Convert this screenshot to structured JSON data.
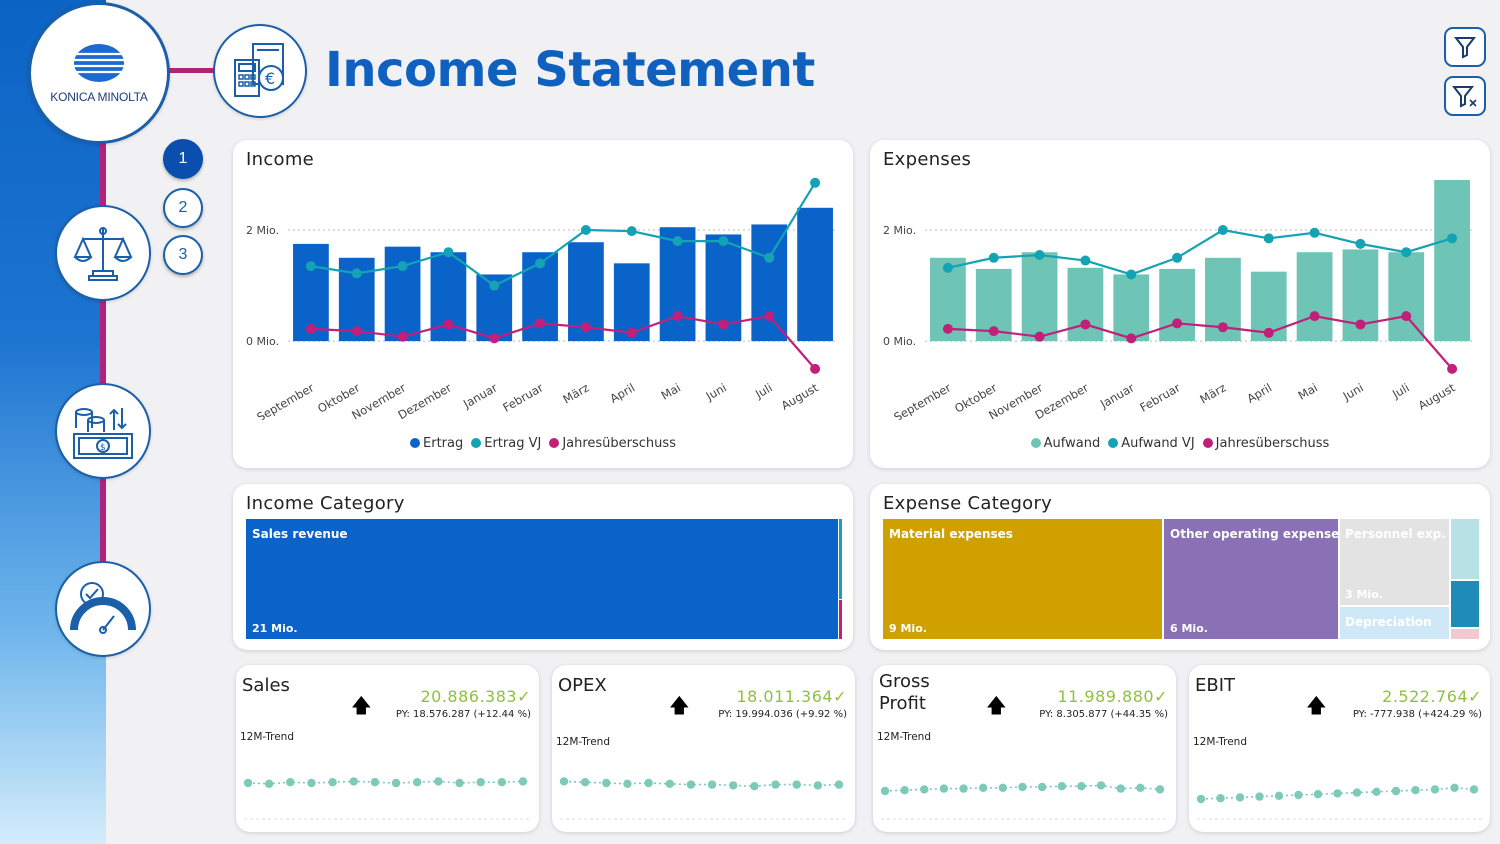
{
  "brand": {
    "name": "KONICA MINOLTA"
  },
  "page_title": "Income Statement",
  "nav": {
    "pages": [
      "1",
      "2",
      "3"
    ],
    "active_page": "1",
    "icons": [
      "balance-scale-icon",
      "finance-cash-icon",
      "performance-gauge-icon"
    ]
  },
  "toolbar": {
    "filter_icon": "filter-icon",
    "clear_filter_icon": "clear-filter-icon"
  },
  "colors": {
    "ertrag": "#0a63c9",
    "ertrag_vj": "#13a3b4",
    "jahresueberschuss": "#c0207a",
    "aufwand": "#6ec5b5",
    "aufwand_vj": "#13a3b4",
    "title": "#1060c0",
    "kpi_value": "#8fc13e"
  },
  "income_card": {
    "title": "Income",
    "y_ticks": [
      "2 Mio.",
      "0 Mio."
    ]
  },
  "expenses_card": {
    "title": "Expenses",
    "y_ticks": [
      "2 Mio.",
      "0 Mio."
    ]
  },
  "chart_data": [
    {
      "type": "bar",
      "title": "Income",
      "categories": [
        "September",
        "Oktober",
        "November",
        "Dezember",
        "Januar",
        "Februar",
        "März",
        "April",
        "Mai",
        "Juni",
        "Juli",
        "August"
      ],
      "ylim": [
        -0.7,
        2.9
      ],
      "series": [
        {
          "name": "Ertrag",
          "kind": "bar",
          "values": [
            1.75,
            1.5,
            1.7,
            1.6,
            1.2,
            1.6,
            1.78,
            1.4,
            2.05,
            1.92,
            2.1,
            2.4
          ]
        },
        {
          "name": "Ertrag VJ",
          "kind": "line",
          "values": [
            1.35,
            1.22,
            1.35,
            1.6,
            1.0,
            1.4,
            2.0,
            1.98,
            1.8,
            1.8,
            1.5,
            2.85
          ]
        },
        {
          "name": "Jahresüberschuss",
          "kind": "line",
          "values": [
            0.22,
            0.18,
            0.08,
            0.3,
            0.05,
            0.32,
            0.25,
            0.15,
            0.45,
            0.3,
            0.45,
            -0.5
          ]
        }
      ],
      "legend_position": "bottom",
      "grid": true
    },
    {
      "type": "bar",
      "title": "Expenses",
      "categories": [
        "September",
        "Oktober",
        "November",
        "Dezember",
        "Januar",
        "Februar",
        "März",
        "April",
        "Mai",
        "Juni",
        "Juli",
        "August"
      ],
      "ylim": [
        -0.7,
        2.9
      ],
      "series": [
        {
          "name": "Aufwand",
          "kind": "bar",
          "values": [
            1.5,
            1.3,
            1.6,
            1.32,
            1.2,
            1.3,
            1.5,
            1.25,
            1.6,
            1.65,
            1.6,
            2.9
          ]
        },
        {
          "name": "Aufwand VJ",
          "kind": "line",
          "values": [
            1.32,
            1.5,
            1.55,
            1.45,
            1.2,
            1.5,
            2.0,
            1.85,
            1.95,
            1.75,
            1.6,
            1.85
          ]
        },
        {
          "name": "Jahresüberschuss",
          "kind": "line",
          "values": [
            0.22,
            0.18,
            0.08,
            0.3,
            0.05,
            0.32,
            0.25,
            0.15,
            0.45,
            0.3,
            0.45,
            -0.5
          ]
        }
      ],
      "legend_position": "bottom",
      "grid": true
    }
  ],
  "income_category": {
    "title": "Income Category",
    "tiles": [
      {
        "label": "Sales revenue",
        "value": "21 Mio.",
        "color": "#0a63c9"
      }
    ],
    "slivers": [
      "#13a3b4",
      "#c0207a"
    ]
  },
  "expense_category": {
    "title": "Expense Category",
    "tiles": [
      {
        "label": "Material expenses",
        "value": "9 Mio.",
        "color": "#cfa000"
      },
      {
        "label": "Other operating expenses",
        "value": "6 Mio.",
        "color": "#8a70b4"
      },
      {
        "label": "Personnel exp...",
        "value": "3 Mio.",
        "color": "#e3e3e3"
      },
      {
        "label": "Depreciation",
        "value": "",
        "color": "#cfe8f7"
      }
    ],
    "small_tiles": [
      "#b8e1e6",
      "#1f8cb8",
      "#f2c9d0"
    ]
  },
  "kpis": [
    {
      "title": "Sales",
      "value": "20.886.383",
      "py": "PY: 18.576.287 (+12.44 %)",
      "trend_label": "12M-Trend",
      "trend": [
        50,
        49,
        51,
        50,
        51,
        52,
        51,
        50,
        51,
        52,
        50,
        51,
        51,
        52
      ]
    },
    {
      "title": "OPEX",
      "value": "18.011.364",
      "py": "PY: 19.994.036 (+9.92 %)",
      "trend_label": "12M-Trend",
      "trend": [
        52,
        51,
        50,
        49,
        50,
        49,
        48,
        48,
        47,
        46,
        48,
        48,
        47,
        48
      ]
    },
    {
      "title": "Gross\nProfit",
      "value": "11.989.880",
      "py": "PY: 8.305.877 (+44.35 %)",
      "trend_label": "12M-Trend",
      "trend": [
        40,
        41,
        42,
        43,
        43,
        44,
        44,
        45,
        45,
        46,
        46,
        47,
        43,
        44,
        42
      ]
    },
    {
      "title": "EBIT",
      "value": "2.522.764",
      "py": "PY: -777.938 (+424.29 %)",
      "trend_label": "12M-Trend",
      "trend": [
        30,
        31,
        32,
        33,
        34,
        35,
        36,
        37,
        38,
        39,
        40,
        41,
        42,
        44,
        42
      ]
    }
  ]
}
